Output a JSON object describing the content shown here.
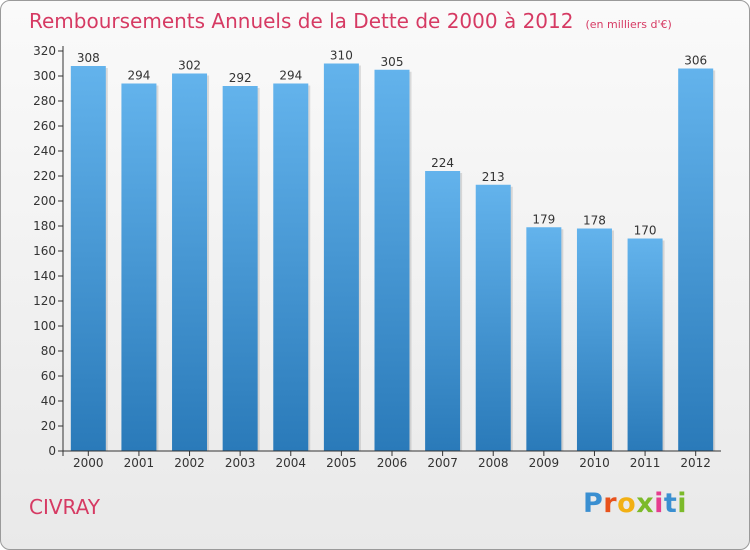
{
  "header": {
    "title": "Remboursements Annuels de la Dette de 2000 à 2012",
    "subtitle": "(en milliers d'€)"
  },
  "footer": {
    "city": "CIVRAY",
    "logo_letters": [
      "P",
      "r",
      "o",
      "x",
      "i",
      "t",
      "i"
    ],
    "logo_colors": [
      "#3a8fd1",
      "#e8521c",
      "#f2b014",
      "#7cba2a",
      "#e63d8f",
      "#3a8fd1",
      "#7cba2a"
    ]
  },
  "colors": {
    "accent": "#d63a63",
    "bar_top": "#63b3ec",
    "bar_bottom": "#2a7ab9",
    "axis": "#333333",
    "grid": "#c9c9c9"
  },
  "chart_data": {
    "type": "bar",
    "title": "Remboursements Annuels de la Dette de 2000 à 2012",
    "subtitle": "(en milliers d'€)",
    "categories": [
      "2000",
      "2001",
      "2002",
      "2003",
      "2004",
      "2005",
      "2006",
      "2007",
      "2008",
      "2009",
      "2010",
      "2011",
      "2012"
    ],
    "values": [
      308,
      294,
      302,
      292,
      294,
      310,
      305,
      224,
      213,
      179,
      178,
      170,
      306
    ],
    "ylim": [
      0,
      320
    ],
    "ytick_step": 20,
    "grid": false,
    "legend": "none"
  }
}
